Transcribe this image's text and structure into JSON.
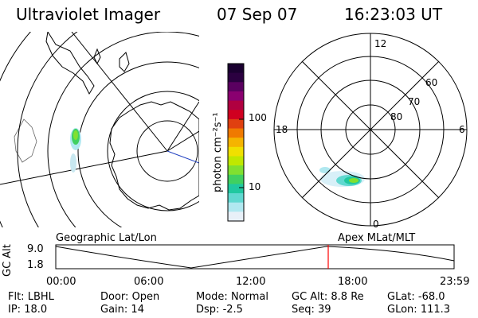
{
  "header": {
    "instrument": "Ultraviolet Imager",
    "date": "07 Sep 07",
    "time": "16:23:03 UT"
  },
  "colorbar": {
    "unit_label": "photon cm⁻²s⁻¹",
    "ticks": [
      "100",
      "10"
    ],
    "colors": [
      "#1a0030",
      "#2b0040",
      "#5a0060",
      "#8a0070",
      "#b00040",
      "#d00020",
      "#e04010",
      "#f07a00",
      "#f5b400",
      "#f0e000",
      "#c0e800",
      "#80e030",
      "#40d060",
      "#20c8a0",
      "#60d8d0",
      "#b0e8f0",
      "#e8f0f8"
    ]
  },
  "panels": {
    "left_label": "Geographic Lat/Lon",
    "right_label": "Apex MLat/MLT",
    "polar_clock": {
      "top": "12",
      "left": "18",
      "right": "6",
      "bottom": "0"
    },
    "polar_lat": [
      "60",
      "70",
      "80"
    ]
  },
  "timeline": {
    "ylabel": "GC Alt",
    "ymax": "9.0",
    "ymin": "1.8",
    "xticks": [
      "00:00",
      "06:00",
      "12:00",
      "18:00",
      "23:59"
    ],
    "current_time_fraction": 0.684
  },
  "footer": {
    "row1": [
      {
        "label": "Flt:",
        "value": "LBHL"
      },
      {
        "label": "Door:",
        "value": "Open"
      },
      {
        "label": "Mode:",
        "value": "Normal"
      },
      {
        "label": "GC Alt:",
        "value": "8.8 Re"
      },
      {
        "label": "GLat:",
        "value": "-68.0"
      }
    ],
    "row2": [
      {
        "label": "IP:",
        "value": "18.0"
      },
      {
        "label": "Gain:",
        "value": "14"
      },
      {
        "label": "Dsp:",
        "value": "-2.5"
      },
      {
        "label": "Seq:",
        "value": "39"
      },
      {
        "label": "GLon:",
        "value": "111.3"
      }
    ]
  }
}
